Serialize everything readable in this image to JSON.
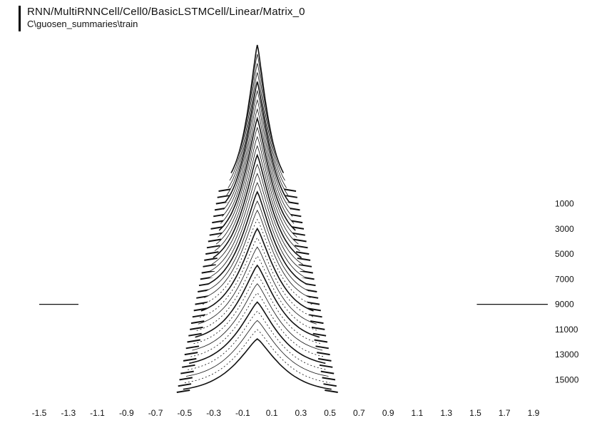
{
  "header": {
    "title": "RNN/MultiRNNCell/Cell0/BasicLSTMCell/Linear/Matrix_0",
    "subtitle": "C\\guosen_summaries\\train"
  },
  "chart_data": {
    "type": "histogram-ridgeline",
    "title": "RNN/MultiRNNCell/Cell0/BasicLSTMCell/Linear/Matrix_0",
    "subtitle": "C\\guosen_summaries\\train",
    "x_ticks": [
      "-1.5",
      "-1.3",
      "-1.1",
      "-0.9",
      "-0.7",
      "-0.5",
      "-0.3",
      "-0.1",
      "0.1",
      "0.3",
      "0.5",
      "0.7",
      "0.9",
      "1.1",
      "1.3",
      "1.5",
      "1.7",
      "1.9"
    ],
    "x_tick_values": [
      -1.5,
      -1.3,
      -1.1,
      -0.9,
      -0.7,
      -0.5,
      -0.3,
      -0.1,
      0.1,
      0.3,
      0.5,
      0.7,
      0.9,
      1.1,
      1.3,
      1.5,
      1.7,
      1.9
    ],
    "xlim": [
      -1.5,
      1.9
    ],
    "step_ticks": [
      "1000",
      "3000",
      "5000",
      "7000",
      "9000",
      "11000",
      "13000",
      "15000"
    ],
    "step_tick_values": [
      1000,
      3000,
      5000,
      7000,
      9000,
      11000,
      13000,
      15000
    ],
    "step_range": [
      0,
      16000
    ],
    "ridge_steps": [
      0,
      500,
      1000,
      1500,
      2000,
      2500,
      3000,
      3500,
      4000,
      4500,
      5000,
      5500,
      6000,
      6500,
      7000,
      7500,
      8000,
      8500,
      9000,
      9500,
      10000,
      10500,
      11000,
      11500,
      12000,
      12500,
      13000,
      13500,
      14000,
      14500,
      15000,
      15500,
      16000
    ],
    "peak_center": 0.0,
    "outlier_ranges": [
      [
        -1.5,
        -1.23
      ],
      [
        1.51,
        2.0
      ]
    ],
    "outlier_step": 9000
  }
}
